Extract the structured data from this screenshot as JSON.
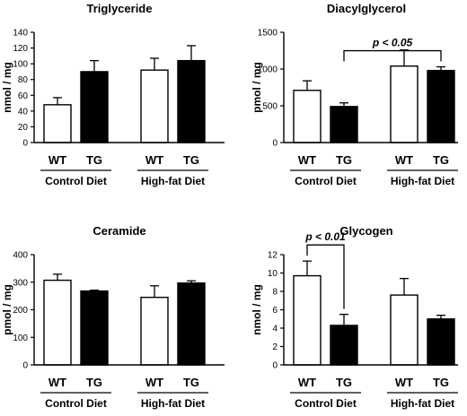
{
  "chart_data": [
    {
      "type": "bar",
      "title": "Triglyceride",
      "ylabel": "nmol / mg",
      "ylim": [
        0,
        140
      ],
      "yticks": [
        0,
        20,
        40,
        60,
        80,
        100,
        120,
        140
      ],
      "categories": [
        "WT",
        "TG",
        "WT",
        "TG"
      ],
      "groups": [
        "Control Diet",
        "High-fat Diet"
      ],
      "series": [
        {
          "values": [
            48,
            90,
            92,
            104
          ],
          "errors": [
            9,
            14,
            15,
            19
          ],
          "fill": [
            "#ffffff",
            "#000000",
            "#ffffff",
            "#000000"
          ]
        }
      ],
      "significance": null
    },
    {
      "type": "bar",
      "title": "Diacylglycerol",
      "ylabel": "pmol / mg",
      "ylim": [
        0,
        1500
      ],
      "yticks": [
        0,
        500,
        1000,
        1500
      ],
      "categories": [
        "WT",
        "TG",
        "WT",
        "TG"
      ],
      "groups": [
        "Control Diet",
        "High-fat Diet"
      ],
      "series": [
        {
          "values": [
            710,
            490,
            1040,
            980
          ],
          "errors": [
            130,
            50,
            220,
            50
          ],
          "fill": [
            "#ffffff",
            "#000000",
            "#ffffff",
            "#000000"
          ]
        }
      ],
      "significance": {
        "label": "p < 0.05",
        "from": 1,
        "to": 3
      }
    },
    {
      "type": "bar",
      "title": "Ceramide",
      "ylabel": "pmol / mg",
      "ylim": [
        0,
        400
      ],
      "yticks": [
        0,
        100,
        200,
        300,
        400
      ],
      "categories": [
        "WT",
        "TG",
        "WT",
        "TG"
      ],
      "groups": [
        "Control Diet",
        "High-fat Diet"
      ],
      "series": [
        {
          "values": [
            307,
            268,
            245,
            297
          ],
          "errors": [
            22,
            3,
            42,
            8
          ],
          "fill": [
            "#ffffff",
            "#000000",
            "#ffffff",
            "#000000"
          ]
        }
      ],
      "significance": null
    },
    {
      "type": "bar",
      "title": "Glycogen",
      "ylabel": "nmol / mg",
      "ylim": [
        0,
        12
      ],
      "yticks": [
        0,
        2,
        4,
        6,
        8,
        10,
        12
      ],
      "categories": [
        "WT",
        "TG",
        "WT",
        "TG"
      ],
      "groups": [
        "Control Diet",
        "High-fat Diet"
      ],
      "series": [
        {
          "values": [
            9.7,
            4.3,
            7.6,
            5.0
          ],
          "errors": [
            1.6,
            1.2,
            1.8,
            0.4
          ],
          "fill": [
            "#ffffff",
            "#000000",
            "#ffffff",
            "#000000"
          ]
        }
      ],
      "significance": {
        "label": "p < 0.01",
        "from": 0,
        "to": 1
      }
    }
  ]
}
